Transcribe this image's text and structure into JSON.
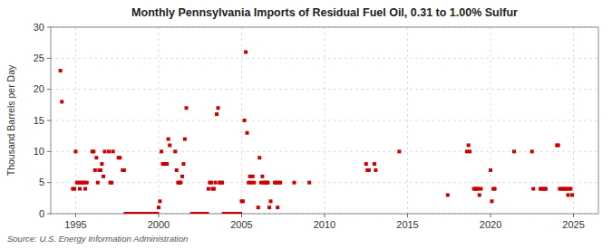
{
  "chart_data": {
    "type": "scatter",
    "title": "Monthly Pennsylvania Imports of Residual Fuel Oil, 0.31 to 1.00% Sulfur",
    "y_label": "Thousand Barrels per Day",
    "source": "Source: U.S. Energy Information Administration",
    "color": "#cc0000",
    "marker": "square",
    "grid": true,
    "ylim": [
      0,
      30
    ],
    "yticks": [
      0,
      5,
      10,
      15,
      20,
      25,
      30
    ],
    "xlim": [
      1993.5,
      2026.5
    ],
    "xticks": [
      1995,
      2000,
      2005,
      2010,
      2015,
      2020,
      2025
    ],
    "x": [
      1994.08,
      1994.17,
      1994.83,
      1994.92,
      1995.0,
      1995.08,
      1995.17,
      1995.25,
      1995.33,
      1995.42,
      1995.5,
      1995.58,
      1995.67,
      1996.0,
      1996.08,
      1996.17,
      1996.25,
      1996.33,
      1996.42,
      1996.5,
      1996.58,
      1996.67,
      1996.75,
      1997.0,
      1997.08,
      1997.17,
      1997.25,
      1997.58,
      1997.67,
      1997.83,
      1997.92,
      1998.0,
      1998.08,
      1998.17,
      1998.25,
      1998.33,
      1998.42,
      1998.5,
      1998.58,
      1998.67,
      1998.75,
      1998.83,
      1998.92,
      1999.0,
      1999.08,
      1999.17,
      1999.25,
      1999.33,
      1999.42,
      1999.5,
      1999.58,
      1999.67,
      1999.75,
      1999.83,
      1999.92,
      2000.0,
      2000.08,
      2000.17,
      2000.25,
      2000.33,
      2000.42,
      2000.5,
      2000.58,
      2000.67,
      2001.0,
      2001.08,
      2001.17,
      2001.25,
      2001.33,
      2001.42,
      2001.5,
      2001.58,
      2001.67,
      2002.0,
      2002.08,
      2002.17,
      2002.25,
      2002.33,
      2002.42,
      2002.5,
      2002.58,
      2002.67,
      2002.75,
      2002.83,
      2002.92,
      2003.0,
      2003.08,
      2003.17,
      2003.25,
      2003.33,
      2003.42,
      2003.5,
      2003.58,
      2003.67,
      2003.75,
      2003.83,
      2003.92,
      2004.0,
      2004.08,
      2004.17,
      2004.25,
      2004.33,
      2004.42,
      2004.5,
      2004.58,
      2004.67,
      2004.75,
      2004.83,
      2004.92,
      2005.0,
      2005.08,
      2005.17,
      2005.25,
      2005.33,
      2005.42,
      2005.5,
      2005.58,
      2005.67,
      2005.75,
      2006.0,
      2006.08,
      2006.17,
      2006.25,
      2006.33,
      2006.42,
      2006.5,
      2006.58,
      2006.67,
      2006.75,
      2007.0,
      2007.08,
      2007.17,
      2007.25,
      2007.33,
      2008.17,
      2009.08,
      2012.5,
      2012.58,
      2012.67,
      2013.0,
      2013.08,
      2014.5,
      2017.42,
      2018.58,
      2018.67,
      2018.75,
      2019.0,
      2019.08,
      2019.17,
      2019.25,
      2019.33,
      2019.42,
      2020.0,
      2020.08,
      2020.17,
      2020.25,
      2021.42,
      2022.5,
      2022.58,
      2023.0,
      2023.08,
      2023.17,
      2023.25,
      2023.33,
      2024.0,
      2024.08,
      2024.17,
      2024.25,
      2024.33,
      2024.42,
      2024.5,
      2024.58,
      2024.67,
      2024.75,
      2024.83,
      2024.92
    ],
    "values": [
      23,
      18,
      4,
      4,
      10,
      5,
      5,
      4,
      5,
      5,
      5,
      4,
      5,
      10,
      10,
      7,
      9,
      5,
      7,
      7,
      8,
      6,
      10,
      10,
      5,
      5,
      10,
      9,
      9,
      7,
      7,
      0,
      0,
      0,
      0,
      0,
      0,
      0,
      0,
      0,
      0,
      0,
      0,
      0,
      0,
      0,
      0,
      0,
      0,
      0,
      0,
      0,
      0,
      0,
      0,
      1,
      2,
      10,
      8,
      8,
      8,
      8,
      12,
      11,
      10,
      7,
      5,
      5,
      5,
      6,
      8,
      12,
      17,
      0,
      0,
      0,
      0,
      0,
      0,
      0,
      0,
      0,
      0,
      0,
      0,
      4,
      5,
      5,
      4,
      4,
      5,
      16,
      17,
      5,
      5,
      5,
      0,
      0,
      0,
      0,
      0,
      0,
      0,
      0,
      0,
      0,
      0,
      0,
      0,
      2,
      2,
      15,
      26,
      13,
      5,
      6,
      5,
      6,
      5,
      1,
      9,
      5,
      6,
      5,
      5,
      5,
      5,
      1,
      2,
      5,
      5,
      1,
      5,
      5,
      5,
      5,
      8,
      7,
      7,
      8,
      7,
      10,
      3,
      10,
      11,
      10,
      4,
      4,
      4,
      4,
      3,
      4,
      7,
      2,
      4,
      4,
      10,
      10,
      4,
      4,
      4,
      4,
      4,
      4,
      11,
      11,
      4,
      4,
      4,
      4,
      4,
      4,
      3,
      4,
      4,
      3
    ]
  }
}
